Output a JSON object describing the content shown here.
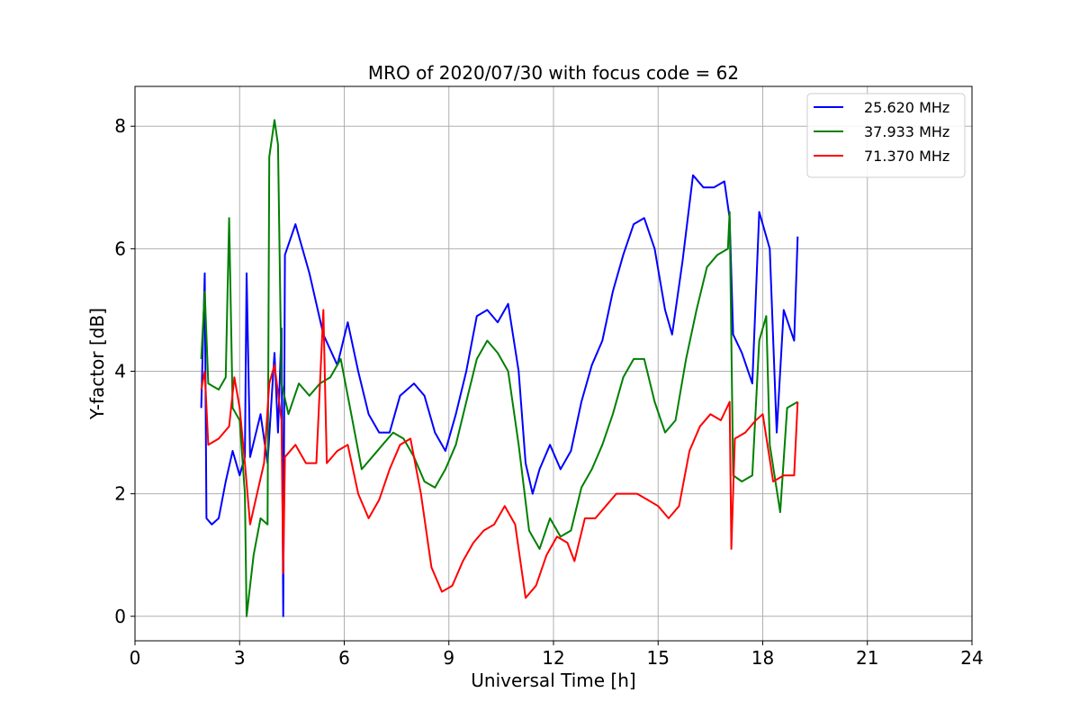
{
  "chart_data": {
    "type": "line",
    "title": "MRO of 2020/07/30 with focus code = 62",
    "xlabel": "Universal Time [h]",
    "ylabel": "Y-factor [dB]",
    "xlim": [
      0,
      24
    ],
    "ylim": [
      -0.4,
      8.65
    ],
    "x_ticks": [
      0,
      3,
      6,
      9,
      12,
      15,
      18,
      21,
      24
    ],
    "x_tick_labels": [
      "0",
      "3",
      "6",
      "9",
      "12",
      "15",
      "18",
      "21",
      "24"
    ],
    "y_ticks": [
      0,
      2,
      4,
      6,
      8
    ],
    "y_tick_labels": [
      "0",
      "2",
      "4",
      "6",
      "8"
    ],
    "grid": true,
    "legend_position": "top-right",
    "series": [
      {
        "name": "25.620 MHz",
        "color": "#0000ff",
        "points": [
          [
            1.9,
            3.4
          ],
          [
            2.0,
            5.6
          ],
          [
            2.05,
            1.6
          ],
          [
            2.2,
            1.5
          ],
          [
            2.4,
            1.6
          ],
          [
            2.6,
            2.2
          ],
          [
            2.8,
            2.7
          ],
          [
            3.0,
            2.3
          ],
          [
            3.15,
            2.6
          ],
          [
            3.2,
            5.6
          ],
          [
            3.3,
            2.6
          ],
          [
            3.6,
            3.3
          ],
          [
            3.8,
            2.5
          ],
          [
            4.0,
            4.3
          ],
          [
            4.1,
            3.0
          ],
          [
            4.2,
            4.7
          ],
          [
            4.25,
            0.0
          ],
          [
            4.3,
            5.9
          ],
          [
            4.6,
            6.4
          ],
          [
            5.0,
            5.6
          ],
          [
            5.4,
            4.6
          ],
          [
            5.8,
            4.1
          ],
          [
            6.1,
            4.8
          ],
          [
            6.4,
            4.0
          ],
          [
            6.7,
            3.3
          ],
          [
            7.0,
            3.0
          ],
          [
            7.3,
            3.0
          ],
          [
            7.6,
            3.6
          ],
          [
            8.0,
            3.8
          ],
          [
            8.3,
            3.6
          ],
          [
            8.6,
            3.0
          ],
          [
            8.9,
            2.7
          ],
          [
            9.2,
            3.3
          ],
          [
            9.5,
            4.0
          ],
          [
            9.8,
            4.9
          ],
          [
            10.1,
            5.0
          ],
          [
            10.4,
            4.8
          ],
          [
            10.7,
            5.1
          ],
          [
            11.0,
            4.0
          ],
          [
            11.2,
            2.5
          ],
          [
            11.4,
            2.0
          ],
          [
            11.6,
            2.4
          ],
          [
            11.9,
            2.8
          ],
          [
            12.2,
            2.4
          ],
          [
            12.5,
            2.7
          ],
          [
            12.8,
            3.5
          ],
          [
            13.1,
            4.1
          ],
          [
            13.4,
            4.5
          ],
          [
            13.7,
            5.3
          ],
          [
            14.0,
            5.9
          ],
          [
            14.3,
            6.4
          ],
          [
            14.6,
            6.5
          ],
          [
            14.9,
            6.0
          ],
          [
            15.2,
            5.0
          ],
          [
            15.4,
            4.6
          ],
          [
            15.7,
            5.8
          ],
          [
            16.0,
            7.2
          ],
          [
            16.3,
            7.0
          ],
          [
            16.6,
            7.0
          ],
          [
            16.9,
            7.1
          ],
          [
            17.05,
            6.5
          ],
          [
            17.15,
            4.6
          ],
          [
            17.4,
            4.3
          ],
          [
            17.7,
            3.8
          ],
          [
            17.9,
            6.6
          ],
          [
            18.2,
            6.0
          ],
          [
            18.4,
            3.0
          ],
          [
            18.6,
            5.0
          ],
          [
            18.9,
            4.5
          ],
          [
            19.0,
            6.2
          ]
        ]
      },
      {
        "name": "37.933 MHz",
        "color": "#008000",
        "points": [
          [
            1.9,
            4.2
          ],
          [
            2.0,
            5.3
          ],
          [
            2.1,
            3.8
          ],
          [
            2.4,
            3.7
          ],
          [
            2.6,
            3.9
          ],
          [
            2.7,
            6.5
          ],
          [
            2.8,
            3.4
          ],
          [
            3.0,
            3.2
          ],
          [
            3.15,
            2.0
          ],
          [
            3.2,
            0.0
          ],
          [
            3.4,
            1.0
          ],
          [
            3.6,
            1.6
          ],
          [
            3.8,
            1.5
          ],
          [
            3.85,
            7.5
          ],
          [
            4.0,
            8.1
          ],
          [
            4.1,
            7.7
          ],
          [
            4.2,
            3.8
          ],
          [
            4.4,
            3.3
          ],
          [
            4.7,
            3.8
          ],
          [
            5.0,
            3.6
          ],
          [
            5.3,
            3.8
          ],
          [
            5.6,
            3.9
          ],
          [
            5.9,
            4.2
          ],
          [
            6.2,
            3.3
          ],
          [
            6.5,
            2.4
          ],
          [
            6.8,
            2.6
          ],
          [
            7.1,
            2.8
          ],
          [
            7.4,
            3.0
          ],
          [
            7.7,
            2.9
          ],
          [
            8.0,
            2.6
          ],
          [
            8.3,
            2.2
          ],
          [
            8.6,
            2.1
          ],
          [
            8.9,
            2.4
          ],
          [
            9.2,
            2.8
          ],
          [
            9.5,
            3.5
          ],
          [
            9.8,
            4.2
          ],
          [
            10.1,
            4.5
          ],
          [
            10.4,
            4.3
          ],
          [
            10.7,
            4.0
          ],
          [
            11.0,
            2.8
          ],
          [
            11.3,
            1.4
          ],
          [
            11.6,
            1.1
          ],
          [
            11.9,
            1.6
          ],
          [
            12.2,
            1.3
          ],
          [
            12.5,
            1.4
          ],
          [
            12.8,
            2.1
          ],
          [
            13.1,
            2.4
          ],
          [
            13.4,
            2.8
          ],
          [
            13.7,
            3.3
          ],
          [
            14.0,
            3.9
          ],
          [
            14.3,
            4.2
          ],
          [
            14.6,
            4.2
          ],
          [
            14.9,
            3.5
          ],
          [
            15.2,
            3.0
          ],
          [
            15.5,
            3.2
          ],
          [
            15.8,
            4.2
          ],
          [
            16.1,
            5.0
          ],
          [
            16.4,
            5.7
          ],
          [
            16.7,
            5.9
          ],
          [
            17.0,
            6.0
          ],
          [
            17.05,
            6.6
          ],
          [
            17.15,
            2.3
          ],
          [
            17.4,
            2.2
          ],
          [
            17.7,
            2.3
          ],
          [
            17.9,
            4.5
          ],
          [
            18.1,
            4.9
          ],
          [
            18.2,
            2.8
          ],
          [
            18.5,
            1.7
          ],
          [
            18.7,
            3.4
          ],
          [
            19.0,
            3.5
          ]
        ]
      },
      {
        "name": "71.370 MHz",
        "color": "#ff0000",
        "points": [
          [
            1.9,
            3.7
          ],
          [
            2.0,
            4.0
          ],
          [
            2.1,
            2.8
          ],
          [
            2.4,
            2.9
          ],
          [
            2.7,
            3.1
          ],
          [
            2.85,
            3.9
          ],
          [
            3.0,
            3.4
          ],
          [
            3.15,
            2.5
          ],
          [
            3.3,
            1.5
          ],
          [
            3.5,
            2.0
          ],
          [
            3.7,
            2.5
          ],
          [
            3.85,
            3.8
          ],
          [
            4.0,
            4.1
          ],
          [
            4.2,
            3.2
          ],
          [
            4.25,
            0.7
          ],
          [
            4.3,
            2.6
          ],
          [
            4.6,
            2.8
          ],
          [
            4.9,
            2.5
          ],
          [
            5.2,
            2.5
          ],
          [
            5.4,
            5.0
          ],
          [
            5.5,
            2.5
          ],
          [
            5.8,
            2.7
          ],
          [
            6.1,
            2.8
          ],
          [
            6.4,
            2.0
          ],
          [
            6.7,
            1.6
          ],
          [
            7.0,
            1.9
          ],
          [
            7.3,
            2.4
          ],
          [
            7.6,
            2.8
          ],
          [
            7.9,
            2.9
          ],
          [
            8.2,
            2.0
          ],
          [
            8.5,
            0.8
          ],
          [
            8.8,
            0.4
          ],
          [
            9.1,
            0.5
          ],
          [
            9.4,
            0.9
          ],
          [
            9.7,
            1.2
          ],
          [
            10.0,
            1.4
          ],
          [
            10.3,
            1.5
          ],
          [
            10.6,
            1.8
          ],
          [
            10.9,
            1.5
          ],
          [
            11.2,
            0.3
          ],
          [
            11.5,
            0.5
          ],
          [
            11.8,
            1.0
          ],
          [
            12.1,
            1.3
          ],
          [
            12.4,
            1.2
          ],
          [
            12.6,
            0.9
          ],
          [
            12.9,
            1.6
          ],
          [
            13.2,
            1.6
          ],
          [
            13.5,
            1.8
          ],
          [
            13.8,
            2.0
          ],
          [
            14.1,
            2.0
          ],
          [
            14.4,
            2.0
          ],
          [
            14.7,
            1.9
          ],
          [
            15.0,
            1.8
          ],
          [
            15.3,
            1.6
          ],
          [
            15.6,
            1.8
          ],
          [
            15.9,
            2.7
          ],
          [
            16.2,
            3.1
          ],
          [
            16.5,
            3.3
          ],
          [
            16.8,
            3.2
          ],
          [
            17.05,
            3.5
          ],
          [
            17.1,
            1.1
          ],
          [
            17.2,
            2.9
          ],
          [
            17.5,
            3.0
          ],
          [
            17.8,
            3.2
          ],
          [
            18.0,
            3.3
          ],
          [
            18.3,
            2.2
          ],
          [
            18.6,
            2.3
          ],
          [
            18.9,
            2.3
          ],
          [
            19.0,
            3.5
          ]
        ]
      }
    ]
  }
}
